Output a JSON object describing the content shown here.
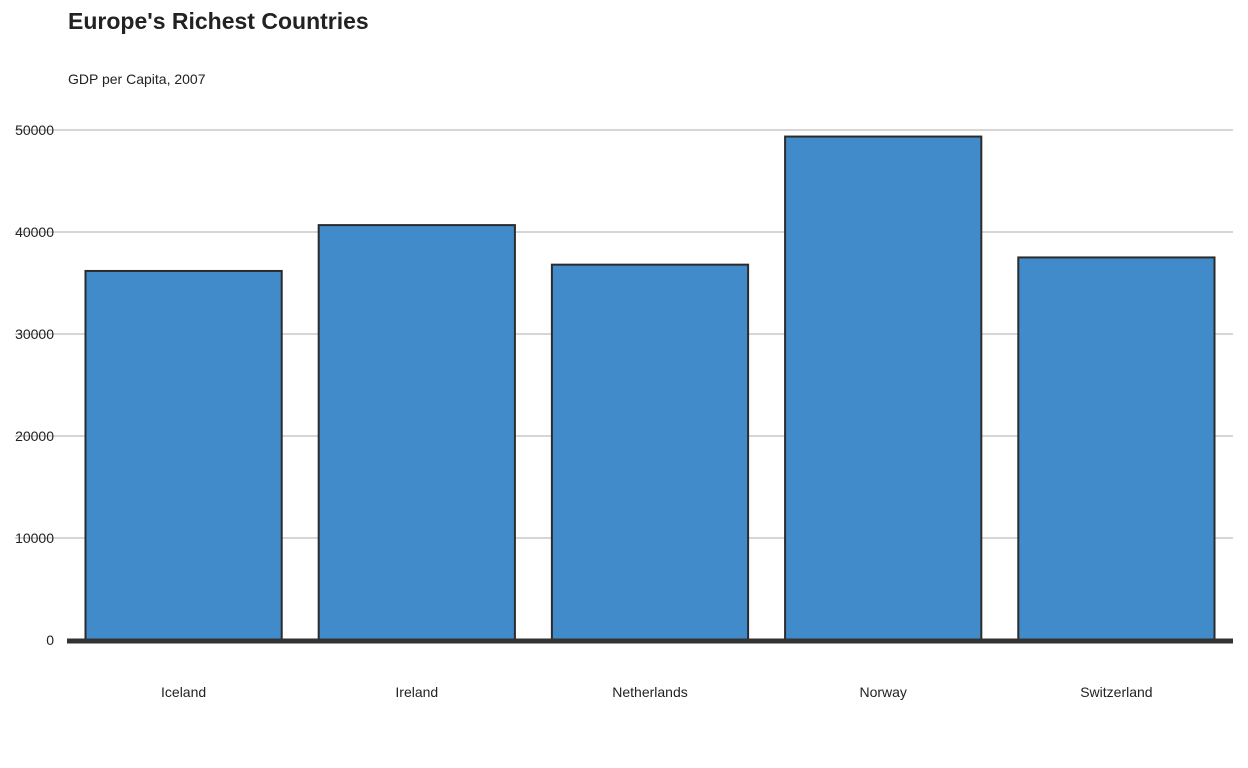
{
  "chart_data": {
    "type": "bar",
    "title": "Europe's Richest Countries",
    "subtitle": "GDP per Capita, 2007",
    "xlabel": "",
    "ylabel": "",
    "categories": [
      "Iceland",
      "Ireland",
      "Netherlands",
      "Norway",
      "Switzerland"
    ],
    "values": [
      36181,
      40676,
      36798,
      49357,
      37506
    ],
    "ylim": [
      0,
      50000
    ],
    "yticks": [
      0,
      10000,
      20000,
      30000,
      40000,
      50000
    ],
    "grid": true,
    "legend": "none",
    "colors": {
      "bar_fill": "#428bca",
      "bar_stroke": "#2b2b2b",
      "grid": "#c8c8c8",
      "baseline": "#333333"
    }
  }
}
